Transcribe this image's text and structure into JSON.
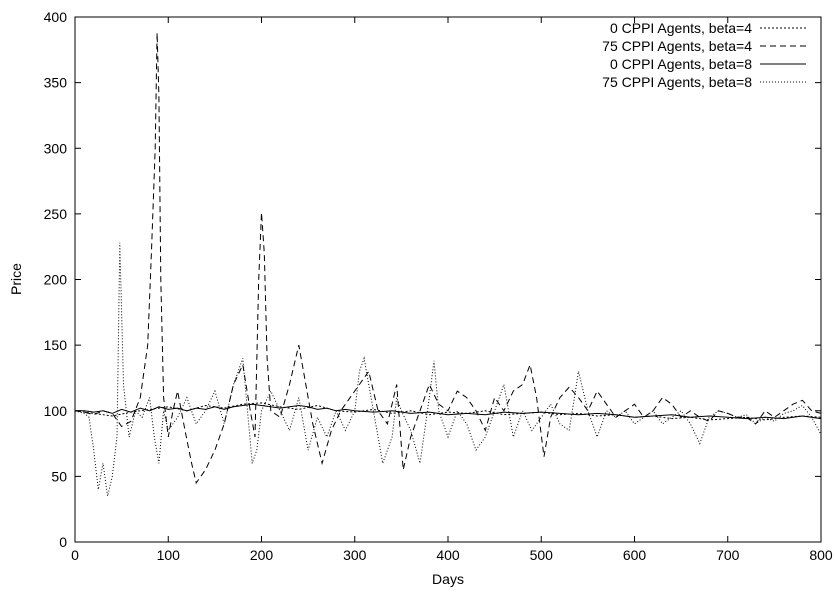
{
  "chart_data": {
    "type": "line",
    "title": "",
    "xlabel": "Days",
    "ylabel": "Price",
    "xlim": [
      0,
      800
    ],
    "ylim": [
      0,
      400
    ],
    "xticks": [
      0,
      100,
      200,
      300,
      400,
      500,
      600,
      700,
      800
    ],
    "yticks": [
      0,
      50,
      100,
      150,
      200,
      250,
      300,
      350,
      400
    ],
    "grid": false,
    "legend_position": "top-right",
    "series": [
      {
        "name": "0 CPPI Agents, beta=4",
        "dash": "2,2",
        "points": [
          [
            0,
            100
          ],
          [
            20,
            98
          ],
          [
            40,
            96
          ],
          [
            60,
            99
          ],
          [
            80,
            101
          ],
          [
            100,
            103
          ],
          [
            120,
            100
          ],
          [
            140,
            104
          ],
          [
            160,
            102
          ],
          [
            180,
            105
          ],
          [
            200,
            106
          ],
          [
            220,
            103
          ],
          [
            240,
            101
          ],
          [
            260,
            104
          ],
          [
            280,
            100
          ],
          [
            300,
            99
          ],
          [
            320,
            101
          ],
          [
            340,
            98
          ],
          [
            360,
            100
          ],
          [
            380,
            97
          ],
          [
            400,
            99
          ],
          [
            420,
            98
          ],
          [
            440,
            100
          ],
          [
            460,
            97
          ],
          [
            480,
            98
          ],
          [
            500,
            99
          ],
          [
            520,
            97
          ],
          [
            540,
            98
          ],
          [
            560,
            96
          ],
          [
            580,
            97
          ],
          [
            600,
            95
          ],
          [
            620,
            96
          ],
          [
            640,
            94
          ],
          [
            660,
            95
          ],
          [
            680,
            93
          ],
          [
            700,
            94
          ],
          [
            720,
            95
          ],
          [
            740,
            93
          ],
          [
            760,
            95
          ],
          [
            780,
            96
          ],
          [
            800,
            95
          ]
        ]
      },
      {
        "name": "75 CPPI Agents, beta=4",
        "dash": "6,4",
        "points": [
          [
            0,
            100
          ],
          [
            10,
            99
          ],
          [
            20,
            97
          ],
          [
            30,
            100
          ],
          [
            40,
            98
          ],
          [
            50,
            88
          ],
          [
            60,
            92
          ],
          [
            70,
            110
          ],
          [
            78,
            150
          ],
          [
            82,
            222
          ],
          [
            86,
            300
          ],
          [
            88,
            388
          ],
          [
            90,
            340
          ],
          [
            92,
            200
          ],
          [
            95,
            110
          ],
          [
            100,
            80
          ],
          [
            105,
            100
          ],
          [
            110,
            115
          ],
          [
            118,
            85
          ],
          [
            125,
            60
          ],
          [
            130,
            45
          ],
          [
            140,
            55
          ],
          [
            150,
            70
          ],
          [
            160,
            90
          ],
          [
            170,
            120
          ],
          [
            180,
            135
          ],
          [
            188,
            100
          ],
          [
            193,
            80
          ],
          [
            197,
            200
          ],
          [
            200,
            251
          ],
          [
            203,
            220
          ],
          [
            206,
            140
          ],
          [
            210,
            100
          ],
          [
            220,
            95
          ],
          [
            230,
            120
          ],
          [
            240,
            150
          ],
          [
            245,
            130
          ],
          [
            255,
            90
          ],
          [
            265,
            60
          ],
          [
            275,
            85
          ],
          [
            285,
            100
          ],
          [
            295,
            110
          ],
          [
            305,
            120
          ],
          [
            315,
            130
          ],
          [
            325,
            100
          ],
          [
            335,
            90
          ],
          [
            345,
            120
          ],
          [
            352,
            55
          ],
          [
            360,
            80
          ],
          [
            370,
            100
          ],
          [
            380,
            120
          ],
          [
            390,
            105
          ],
          [
            400,
            100
          ],
          [
            410,
            115
          ],
          [
            420,
            110
          ],
          [
            430,
            100
          ],
          [
            440,
            85
          ],
          [
            450,
            110
          ],
          [
            460,
            100
          ],
          [
            470,
            115
          ],
          [
            480,
            120
          ],
          [
            488,
            135
          ],
          [
            495,
            110
          ],
          [
            503,
            65
          ],
          [
            510,
            95
          ],
          [
            520,
            110
          ],
          [
            530,
            118
          ],
          [
            540,
            110
          ],
          [
            550,
            100
          ],
          [
            560,
            115
          ],
          [
            570,
            105
          ],
          [
            580,
            95
          ],
          [
            590,
            100
          ],
          [
            600,
            105
          ],
          [
            610,
            95
          ],
          [
            620,
            100
          ],
          [
            630,
            110
          ],
          [
            640,
            105
          ],
          [
            650,
            95
          ],
          [
            660,
            100
          ],
          [
            670,
            95
          ],
          [
            680,
            92
          ],
          [
            690,
            100
          ],
          [
            700,
            98
          ],
          [
            710,
            95
          ],
          [
            720,
            95
          ],
          [
            730,
            90
          ],
          [
            740,
            100
          ],
          [
            750,
            95
          ],
          [
            760,
            100
          ],
          [
            770,
            105
          ],
          [
            780,
            108
          ],
          [
            790,
            100
          ],
          [
            800,
            98
          ]
        ]
      },
      {
        "name": "0 CPPI Agents, beta=8",
        "dash": "",
        "points": [
          [
            0,
            100
          ],
          [
            10,
            100
          ],
          [
            20,
            99
          ],
          [
            30,
            100
          ],
          [
            40,
            98
          ],
          [
            50,
            101
          ],
          [
            60,
            99
          ],
          [
            70,
            102
          ],
          [
            80,
            100
          ],
          [
            90,
            103
          ],
          [
            100,
            101
          ],
          [
            110,
            102
          ],
          [
            120,
            100
          ],
          [
            130,
            102
          ],
          [
            140,
            101
          ],
          [
            150,
            103
          ],
          [
            160,
            101
          ],
          [
            170,
            103
          ],
          [
            180,
            104
          ],
          [
            190,
            105
          ],
          [
            200,
            104
          ],
          [
            210,
            103
          ],
          [
            220,
            102
          ],
          [
            230,
            103
          ],
          [
            240,
            104
          ],
          [
            250,
            103
          ],
          [
            260,
            101
          ],
          [
            270,
            102
          ],
          [
            280,
            100
          ],
          [
            290,
            101
          ],
          [
            300,
            100
          ],
          [
            320,
            99
          ],
          [
            340,
            100
          ],
          [
            360,
            98
          ],
          [
            380,
            99
          ],
          [
            400,
            97
          ],
          [
            420,
            98
          ],
          [
            440,
            97
          ],
          [
            460,
            99
          ],
          [
            480,
            98
          ],
          [
            500,
            99
          ],
          [
            520,
            98
          ],
          [
            540,
            97
          ],
          [
            560,
            98
          ],
          [
            580,
            97
          ],
          [
            600,
            95
          ],
          [
            620,
            96
          ],
          [
            640,
            97
          ],
          [
            660,
            95
          ],
          [
            680,
            96
          ],
          [
            700,
            95
          ],
          [
            720,
            94
          ],
          [
            740,
            95
          ],
          [
            760,
            94
          ],
          [
            780,
            96
          ],
          [
            800,
            94
          ]
        ]
      },
      {
        "name": "75 CPPI Agents, beta=8",
        "dash": "1,2",
        "points": [
          [
            0,
            100
          ],
          [
            10,
            98
          ],
          [
            15,
            95
          ],
          [
            20,
            70
          ],
          [
            25,
            40
          ],
          [
            30,
            60
          ],
          [
            35,
            35
          ],
          [
            40,
            50
          ],
          [
            45,
            80
          ],
          [
            48,
            228
          ],
          [
            52,
            120
          ],
          [
            58,
            80
          ],
          [
            65,
            100
          ],
          [
            72,
            95
          ],
          [
            80,
            110
          ],
          [
            85,
            80
          ],
          [
            90,
            60
          ],
          [
            95,
            100
          ],
          [
            100,
            85
          ],
          [
            110,
            95
          ],
          [
            120,
            110
          ],
          [
            130,
            90
          ],
          [
            140,
            100
          ],
          [
            150,
            115
          ],
          [
            160,
            90
          ],
          [
            170,
            120
          ],
          [
            175,
            130
          ],
          [
            180,
            140
          ],
          [
            185,
            100
          ],
          [
            190,
            60
          ],
          [
            195,
            70
          ],
          [
            200,
            100
          ],
          [
            210,
            115
          ],
          [
            220,
            100
          ],
          [
            230,
            85
          ],
          [
            240,
            110
          ],
          [
            250,
            70
          ],
          [
            260,
            95
          ],
          [
            270,
            80
          ],
          [
            280,
            100
          ],
          [
            290,
            85
          ],
          [
            300,
            100
          ],
          [
            305,
            130
          ],
          [
            310,
            140
          ],
          [
            320,
            100
          ],
          [
            325,
            80
          ],
          [
            330,
            60
          ],
          [
            340,
            80
          ],
          [
            345,
            110
          ],
          [
            350,
            100
          ],
          [
            360,
            85
          ],
          [
            370,
            60
          ],
          [
            380,
            110
          ],
          [
            385,
            138
          ],
          [
            390,
            100
          ],
          [
            400,
            80
          ],
          [
            410,
            100
          ],
          [
            420,
            90
          ],
          [
            430,
            70
          ],
          [
            440,
            80
          ],
          [
            450,
            100
          ],
          [
            460,
            120
          ],
          [
            470,
            80
          ],
          [
            480,
            100
          ],
          [
            490,
            85
          ],
          [
            500,
            95
          ],
          [
            510,
            105
          ],
          [
            520,
            90
          ],
          [
            530,
            85
          ],
          [
            540,
            130
          ],
          [
            550,
            100
          ],
          [
            560,
            80
          ],
          [
            570,
            100
          ],
          [
            580,
            95
          ],
          [
            590,
            100
          ],
          [
            600,
            90
          ],
          [
            610,
            95
          ],
          [
            620,
            100
          ],
          [
            630,
            90
          ],
          [
            640,
            95
          ],
          [
            650,
            100
          ],
          [
            660,
            90
          ],
          [
            670,
            75
          ],
          [
            680,
            95
          ],
          [
            690,
            100
          ],
          [
            700,
            98
          ],
          [
            710,
            95
          ],
          [
            720,
            97
          ],
          [
            730,
            90
          ],
          [
            740,
            95
          ],
          [
            750,
            92
          ],
          [
            760,
            98
          ],
          [
            770,
            100
          ],
          [
            780,
            104
          ],
          [
            790,
            95
          ],
          [
            800,
            82
          ]
        ]
      }
    ]
  }
}
